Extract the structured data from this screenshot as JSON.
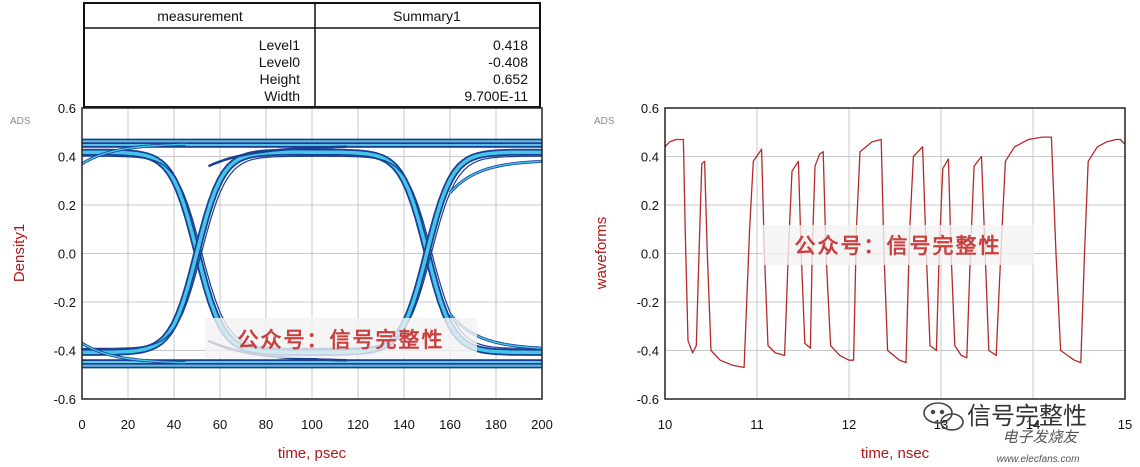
{
  "measurement_table": {
    "headers": [
      "measurement",
      "Summary1"
    ],
    "rows": [
      {
        "label": "Level1",
        "value": "0.418"
      },
      {
        "label": "Level0",
        "value": "-0.408"
      },
      {
        "label": "Height",
        "value": "0.652"
      },
      {
        "label": "Width",
        "value": "9.700E-11"
      }
    ]
  },
  "watermarks": {
    "overlay_text": "公众号：信号完整性",
    "brand_text": "信号完整性",
    "brand_sub": "电子发烧友",
    "url": "www.elecfans.com"
  },
  "colors": {
    "axis_label": "#b01818",
    "waveform_line": "#b42a2a",
    "eye_dark": "#1b3f93",
    "eye_light": "#43c6e8",
    "grid": "#c8c8c8"
  },
  "chart_data": [
    {
      "type": "line",
      "variant": "eye-diagram-density",
      "tag": "ADS",
      "xlabel": "time, psec",
      "ylabel": "Density1",
      "xlim": [
        0,
        200
      ],
      "ylim": [
        -0.6,
        0.6
      ],
      "x_ticks": [
        "0",
        "20",
        "40",
        "60",
        "80",
        "100",
        "120",
        "140",
        "160",
        "180",
        "200"
      ],
      "y_ticks": [
        "-0.6",
        "-0.4",
        "-0.2",
        "0.0",
        "0.2",
        "0.4",
        "0.6"
      ],
      "grid": true,
      "levels": {
        "high": 0.418,
        "low": -0.408
      },
      "crossings_x": [
        50,
        150
      ],
      "crossing_y": 0.0,
      "bundles": [
        {
          "name": "",
          "values": [
            0.44,
            0.47
          ]
        },
        {
          "name": "",
          "values": [
            -0.44,
            -0.47
          ]
        }
      ]
    },
    {
      "type": "line",
      "tag": "ADS",
      "xlabel": "time, nsec",
      "ylabel": "waveforms",
      "xlim": [
        10,
        15
      ],
      "ylim": [
        -0.6,
        0.6
      ],
      "x_ticks": [
        "10",
        "11",
        "12",
        "13",
        "14",
        "15"
      ],
      "y_ticks": [
        "-0.6",
        "-0.4",
        "-0.2",
        "0.0",
        "0.2",
        "0.4",
        "0.6"
      ],
      "grid": true,
      "series": [
        {
          "name": "",
          "points": [
            [
              10.0,
              0.44
            ],
            [
              10.05,
              0.46
            ],
            [
              10.12,
              0.47
            ],
            [
              10.2,
              0.47
            ],
            [
              10.22,
              0.1
            ],
            [
              10.25,
              -0.36
            ],
            [
              10.3,
              -0.41
            ],
            [
              10.34,
              -0.38
            ],
            [
              10.37,
              0.0
            ],
            [
              10.4,
              0.37
            ],
            [
              10.43,
              0.38
            ],
            [
              10.46,
              0.0
            ],
            [
              10.5,
              -0.4
            ],
            [
              10.6,
              -0.44
            ],
            [
              10.73,
              -0.46
            ],
            [
              10.86,
              -0.47
            ],
            [
              10.92,
              0.1
            ],
            [
              10.96,
              0.38
            ],
            [
              11.05,
              0.43
            ],
            [
              11.08,
              0.0
            ],
            [
              11.12,
              -0.38
            ],
            [
              11.2,
              -0.41
            ],
            [
              11.3,
              -0.42
            ],
            [
              11.34,
              0.0
            ],
            [
              11.38,
              0.34
            ],
            [
              11.45,
              0.38
            ],
            [
              11.48,
              0.0
            ],
            [
              11.52,
              -0.37
            ],
            [
              11.58,
              -0.39
            ],
            [
              11.6,
              0.0
            ],
            [
              11.63,
              0.36
            ],
            [
              11.68,
              0.41
            ],
            [
              11.72,
              0.42
            ],
            [
              11.75,
              0.0
            ],
            [
              11.8,
              -0.38
            ],
            [
              11.9,
              -0.42
            ],
            [
              12.0,
              -0.44
            ],
            [
              12.05,
              -0.44
            ],
            [
              12.08,
              0.1
            ],
            [
              12.12,
              0.42
            ],
            [
              12.25,
              0.46
            ],
            [
              12.35,
              0.47
            ],
            [
              12.38,
              0.0
            ],
            [
              12.42,
              -0.4
            ],
            [
              12.55,
              -0.44
            ],
            [
              12.62,
              -0.45
            ],
            [
              12.66,
              0.1
            ],
            [
              12.7,
              0.4
            ],
            [
              12.8,
              0.44
            ],
            [
              12.84,
              0.0
            ],
            [
              12.88,
              -0.38
            ],
            [
              12.95,
              -0.4
            ],
            [
              12.98,
              0.0
            ],
            [
              13.02,
              0.35
            ],
            [
              13.08,
              0.39
            ],
            [
              13.11,
              0.0
            ],
            [
              13.15,
              -0.38
            ],
            [
              13.22,
              -0.42
            ],
            [
              13.28,
              -0.43
            ],
            [
              13.32,
              0.0
            ],
            [
              13.36,
              0.36
            ],
            [
              13.44,
              0.4
            ],
            [
              13.48,
              0.0
            ],
            [
              13.52,
              -0.4
            ],
            [
              13.6,
              -0.42
            ],
            [
              13.65,
              0.0
            ],
            [
              13.7,
              0.38
            ],
            [
              13.8,
              0.44
            ],
            [
              13.95,
              0.47
            ],
            [
              14.1,
              0.48
            ],
            [
              14.2,
              0.48
            ],
            [
              14.25,
              0.0
            ],
            [
              14.3,
              -0.4
            ],
            [
              14.45,
              -0.44
            ],
            [
              14.52,
              -0.45
            ],
            [
              14.56,
              0.0
            ],
            [
              14.6,
              0.38
            ],
            [
              14.7,
              0.44
            ],
            [
              14.8,
              0.46
            ],
            [
              14.9,
              0.47
            ],
            [
              14.95,
              0.47
            ],
            [
              15.0,
              0.45
            ]
          ]
        }
      ]
    }
  ]
}
